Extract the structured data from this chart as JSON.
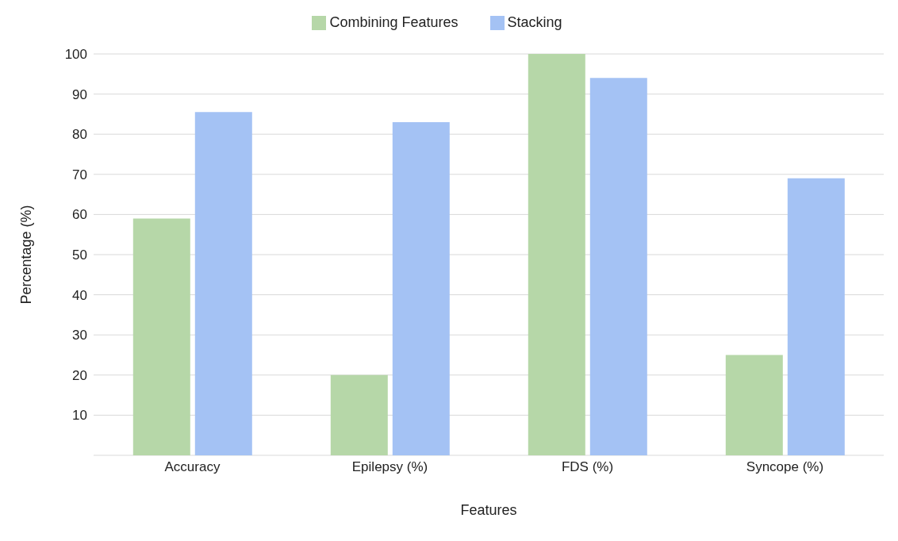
{
  "chart_data": {
    "type": "bar",
    "xlabel": "Features",
    "ylabel": "Percentage (%)",
    "categories": [
      "Accuracy",
      "Epilepsy (%)",
      "FDS (%)",
      "Syncope (%)"
    ],
    "series": [
      {
        "name": "Combining Features",
        "color": "#b6d7a8",
        "values": [
          59,
          20,
          100,
          25
        ]
      },
      {
        "name": "Stacking",
        "color": "#a4c2f4",
        "values": [
          85.5,
          83,
          94,
          69
        ]
      }
    ],
    "ylim": [
      0,
      100
    ],
    "yticks": [
      10,
      20,
      30,
      40,
      50,
      60,
      70,
      80,
      90,
      100
    ],
    "grid": "y",
    "legend": "top"
  }
}
